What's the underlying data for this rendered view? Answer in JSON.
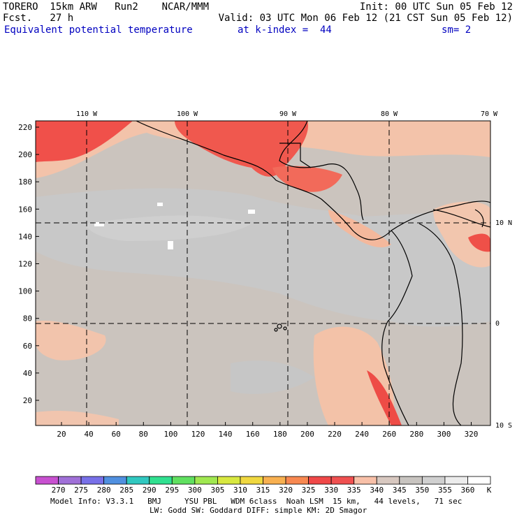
{
  "header": {
    "line1_left": "TORERO  15km ARW   Run2    NCAR/MMM",
    "line1_right": "Init: 00 UTC Sun 05 Feb 12",
    "line2_left": "Fcst.   27 h",
    "line2_right": "Valid: 03 UTC Mon 06 Feb 12 (21 CST Sun 05 Feb 12)",
    "field": "Equivalent potential temperature",
    "level": "at k-index =  44",
    "smooth": "sm= 2"
  },
  "map": {
    "lon_labels": [
      "110 W",
      "100 W",
      "90 W",
      "80 W",
      "70 W"
    ],
    "lat_labels": [
      "10 N",
      "0",
      "10 S"
    ],
    "y_ticks": [
      "220",
      "200",
      "180",
      "160",
      "140",
      "120",
      "100",
      "80",
      "60",
      "40",
      "20"
    ],
    "x_ticks": [
      "20",
      "40",
      "60",
      "80",
      "100",
      "120",
      "140",
      "160",
      "180",
      "200",
      "220",
      "240",
      "260",
      "280",
      "300",
      "320"
    ]
  },
  "colorbar": {
    "unit": "K",
    "labels": [
      "270",
      "275",
      "280",
      "285",
      "290",
      "295",
      "300",
      "305",
      "310",
      "315",
      "320",
      "325",
      "330",
      "335",
      "340",
      "345",
      "350",
      "355",
      "360"
    ],
    "colors": [
      "#c850d0",
      "#a070d8",
      "#7870e8",
      "#5090e0",
      "#30c8c0",
      "#30e090",
      "#60e060",
      "#a0e850",
      "#d8e840",
      "#f0d840",
      "#f8b050",
      "#f88850",
      "#f04848",
      "#f05050",
      "#f8c0a8",
      "#d8c8c0",
      "#c8c4c0",
      "#d0d0d0",
      "#ececec",
      "#ffffff"
    ]
  },
  "footer": {
    "line1": "Model Info: V3.3.1   BMJ     YSU PBL   WDM 6class  Noah LSM  15 km,   44 levels,   71 sec",
    "line2": "LW: Godd SW: Goddard DIFF: simple KM: 2D Smagor"
  }
}
